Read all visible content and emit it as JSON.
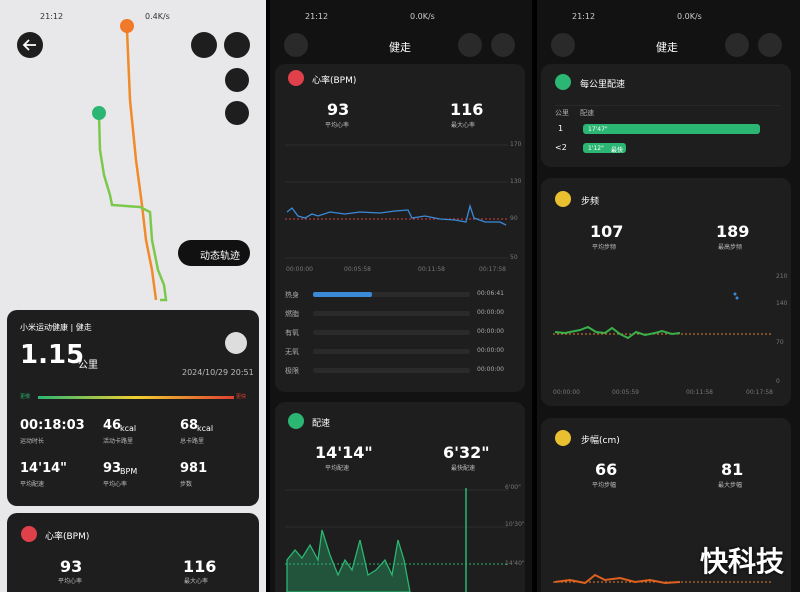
{
  "left": {
    "status": {
      "time": "21:12",
      "speed": "0.4K/s"
    },
    "track_button": "动态轨迹",
    "summary": {
      "title": "小米运动健康 | 健走",
      "distance": "1.15",
      "unit": "公里",
      "date": "2024/10/29 20:51",
      "slow": "更慢",
      "fast": "更快",
      "stats": [
        {
          "value": "00:18:03",
          "label": "运动时长"
        },
        {
          "value": "46",
          "unit": "kcal",
          "label": "活动卡路里"
        },
        {
          "value": "68",
          "unit": "kcal",
          "label": "总卡路里"
        },
        {
          "value": "14'14\"",
          "label": "平均配速"
        },
        {
          "value": "93",
          "unit": "BPM",
          "label": "平均心率"
        },
        {
          "value": "981",
          "label": "步数"
        }
      ]
    },
    "heart": {
      "title": "心率(BPM)",
      "avg": "93",
      "avg_label": "平均心率",
      "max": "116",
      "max_label": "最大心率"
    }
  },
  "middle": {
    "status": {
      "time": "21:12",
      "speed": "0.0K/s"
    },
    "title": "健走",
    "heart": {
      "title": "心率(BPM)",
      "avg": "93",
      "avg_label": "平均心率",
      "max": "116",
      "max_label": "最大心率",
      "y_labels": [
        "170",
        "130",
        "90",
        "50"
      ],
      "x_labels": [
        "00:00:00",
        "00:05:58",
        "00:11:58",
        "00:17:58"
      ],
      "zones": [
        {
          "name": "热身",
          "time": "00:06:41"
        },
        {
          "name": "燃脂",
          "time": "00:00:00"
        },
        {
          "name": "有氧",
          "time": "00:00:00"
        },
        {
          "name": "无氧",
          "time": "00:00:00"
        },
        {
          "name": "极限",
          "time": "00:00:00"
        }
      ]
    },
    "pace": {
      "title": "配速",
      "avg": "14'14\"",
      "avg_label": "平均配速",
      "best": "6'32\"",
      "best_label": "最快配速",
      "y_labels": [
        "6'00\"",
        "10'30\"",
        "14'40\""
      ]
    }
  },
  "right": {
    "status": {
      "time": "21:12",
      "speed": "0.0K/s"
    },
    "title": "健走",
    "km_pace": {
      "title": "每公里配速",
      "col_km": "公里",
      "col_pace": "配速",
      "rows": [
        {
          "km": "1",
          "pace": "17'47\""
        },
        {
          "km": "<2",
          "pace": "1'12\"",
          "badge": "最快"
        }
      ]
    },
    "cadence": {
      "title": "步频",
      "avg": "107",
      "avg_label": "平均步频",
      "max": "189",
      "max_label": "最高步频",
      "y_labels": [
        "210",
        "140",
        "70",
        "0"
      ],
      "x_labels": [
        "00:00:00",
        "00:05:59",
        "00:11:58",
        "00:17:58"
      ]
    },
    "stride": {
      "title": "步幅(cm)",
      "avg": "66",
      "avg_label": "平均步幅",
      "max": "81",
      "max_label": "最大步幅"
    }
  },
  "watermark": "快科技"
}
